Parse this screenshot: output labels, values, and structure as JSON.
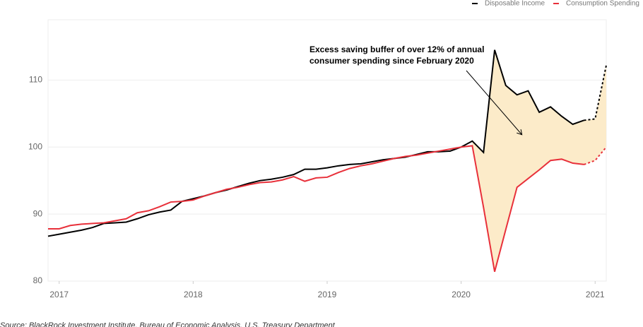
{
  "chart_data": {
    "type": "line",
    "annotation": [
      "Excess saving buffer of over 12% of annual",
      "consumer spending since February 2020"
    ],
    "source": "Source: BlackRock Investment Institute, Bureau of Economic Analysis, U.S. Treasury Department",
    "x": [
      2016.917,
      2017.0,
      2017.083,
      2017.167,
      2017.25,
      2017.333,
      2017.417,
      2017.5,
      2017.583,
      2017.667,
      2017.75,
      2017.833,
      2017.917,
      2018.0,
      2018.083,
      2018.167,
      2018.25,
      2018.333,
      2018.417,
      2018.5,
      2018.583,
      2018.667,
      2018.75,
      2018.833,
      2018.917,
      2019.0,
      2019.083,
      2019.167,
      2019.25,
      2019.333,
      2019.417,
      2019.5,
      2019.583,
      2019.667,
      2019.75,
      2019.833,
      2019.917,
      2020.0,
      2020.083,
      2020.167,
      2020.25,
      2020.333,
      2020.417,
      2020.5,
      2020.583,
      2020.667,
      2020.75,
      2020.833,
      2020.917,
      2021.0,
      2021.083
    ],
    "series": [
      {
        "name": "Disposable Income",
        "color": "#000000",
        "values": [
          86.7,
          87.0,
          87.3,
          87.6,
          88.0,
          88.6,
          88.7,
          88.8,
          89.3,
          89.9,
          90.3,
          90.6,
          91.9,
          92.3,
          92.7,
          93.2,
          93.6,
          94.1,
          94.6,
          95.0,
          95.2,
          95.5,
          95.9,
          96.7,
          96.7,
          96.9,
          97.2,
          97.4,
          97.5,
          97.8,
          98.1,
          98.3,
          98.5,
          98.9,
          99.3,
          99.3,
          99.4,
          100.0,
          100.9,
          99.2,
          114.5,
          109.2,
          107.8,
          108.4,
          105.2,
          106.0,
          104.6,
          103.4,
          104.0,
          104.2,
          112.2
        ]
      },
      {
        "name": "Consumption Spending",
        "color": "#e8303a",
        "values": [
          87.8,
          87.8,
          88.3,
          88.5,
          88.6,
          88.7,
          89.0,
          89.3,
          90.2,
          90.5,
          91.1,
          91.8,
          91.9,
          92.1,
          92.7,
          93.2,
          93.7,
          94.0,
          94.4,
          94.7,
          94.8,
          95.1,
          95.6,
          94.9,
          95.4,
          95.5,
          96.2,
          96.8,
          97.2,
          97.5,
          97.9,
          98.3,
          98.6,
          98.8,
          99.1,
          99.4,
          99.7,
          100.0,
          100.2,
          91.0,
          81.4,
          87.7,
          94.0,
          95.3,
          96.6,
          98.0,
          98.2,
          97.6,
          97.4,
          98.0,
          100.0
        ]
      }
    ],
    "xlim": [
      2016.917,
      2021.083
    ],
    "xticks": [
      2017,
      2018,
      2019,
      2020,
      2021
    ],
    "ylim": [
      80,
      119
    ],
    "yticks": [
      80,
      90,
      100,
      110
    ],
    "grid": true,
    "legend": "top-right",
    "dashed_from_x": 2020.917,
    "fill_between": {
      "color": "#fcebc9",
      "from_x": 2020.083
    }
  }
}
